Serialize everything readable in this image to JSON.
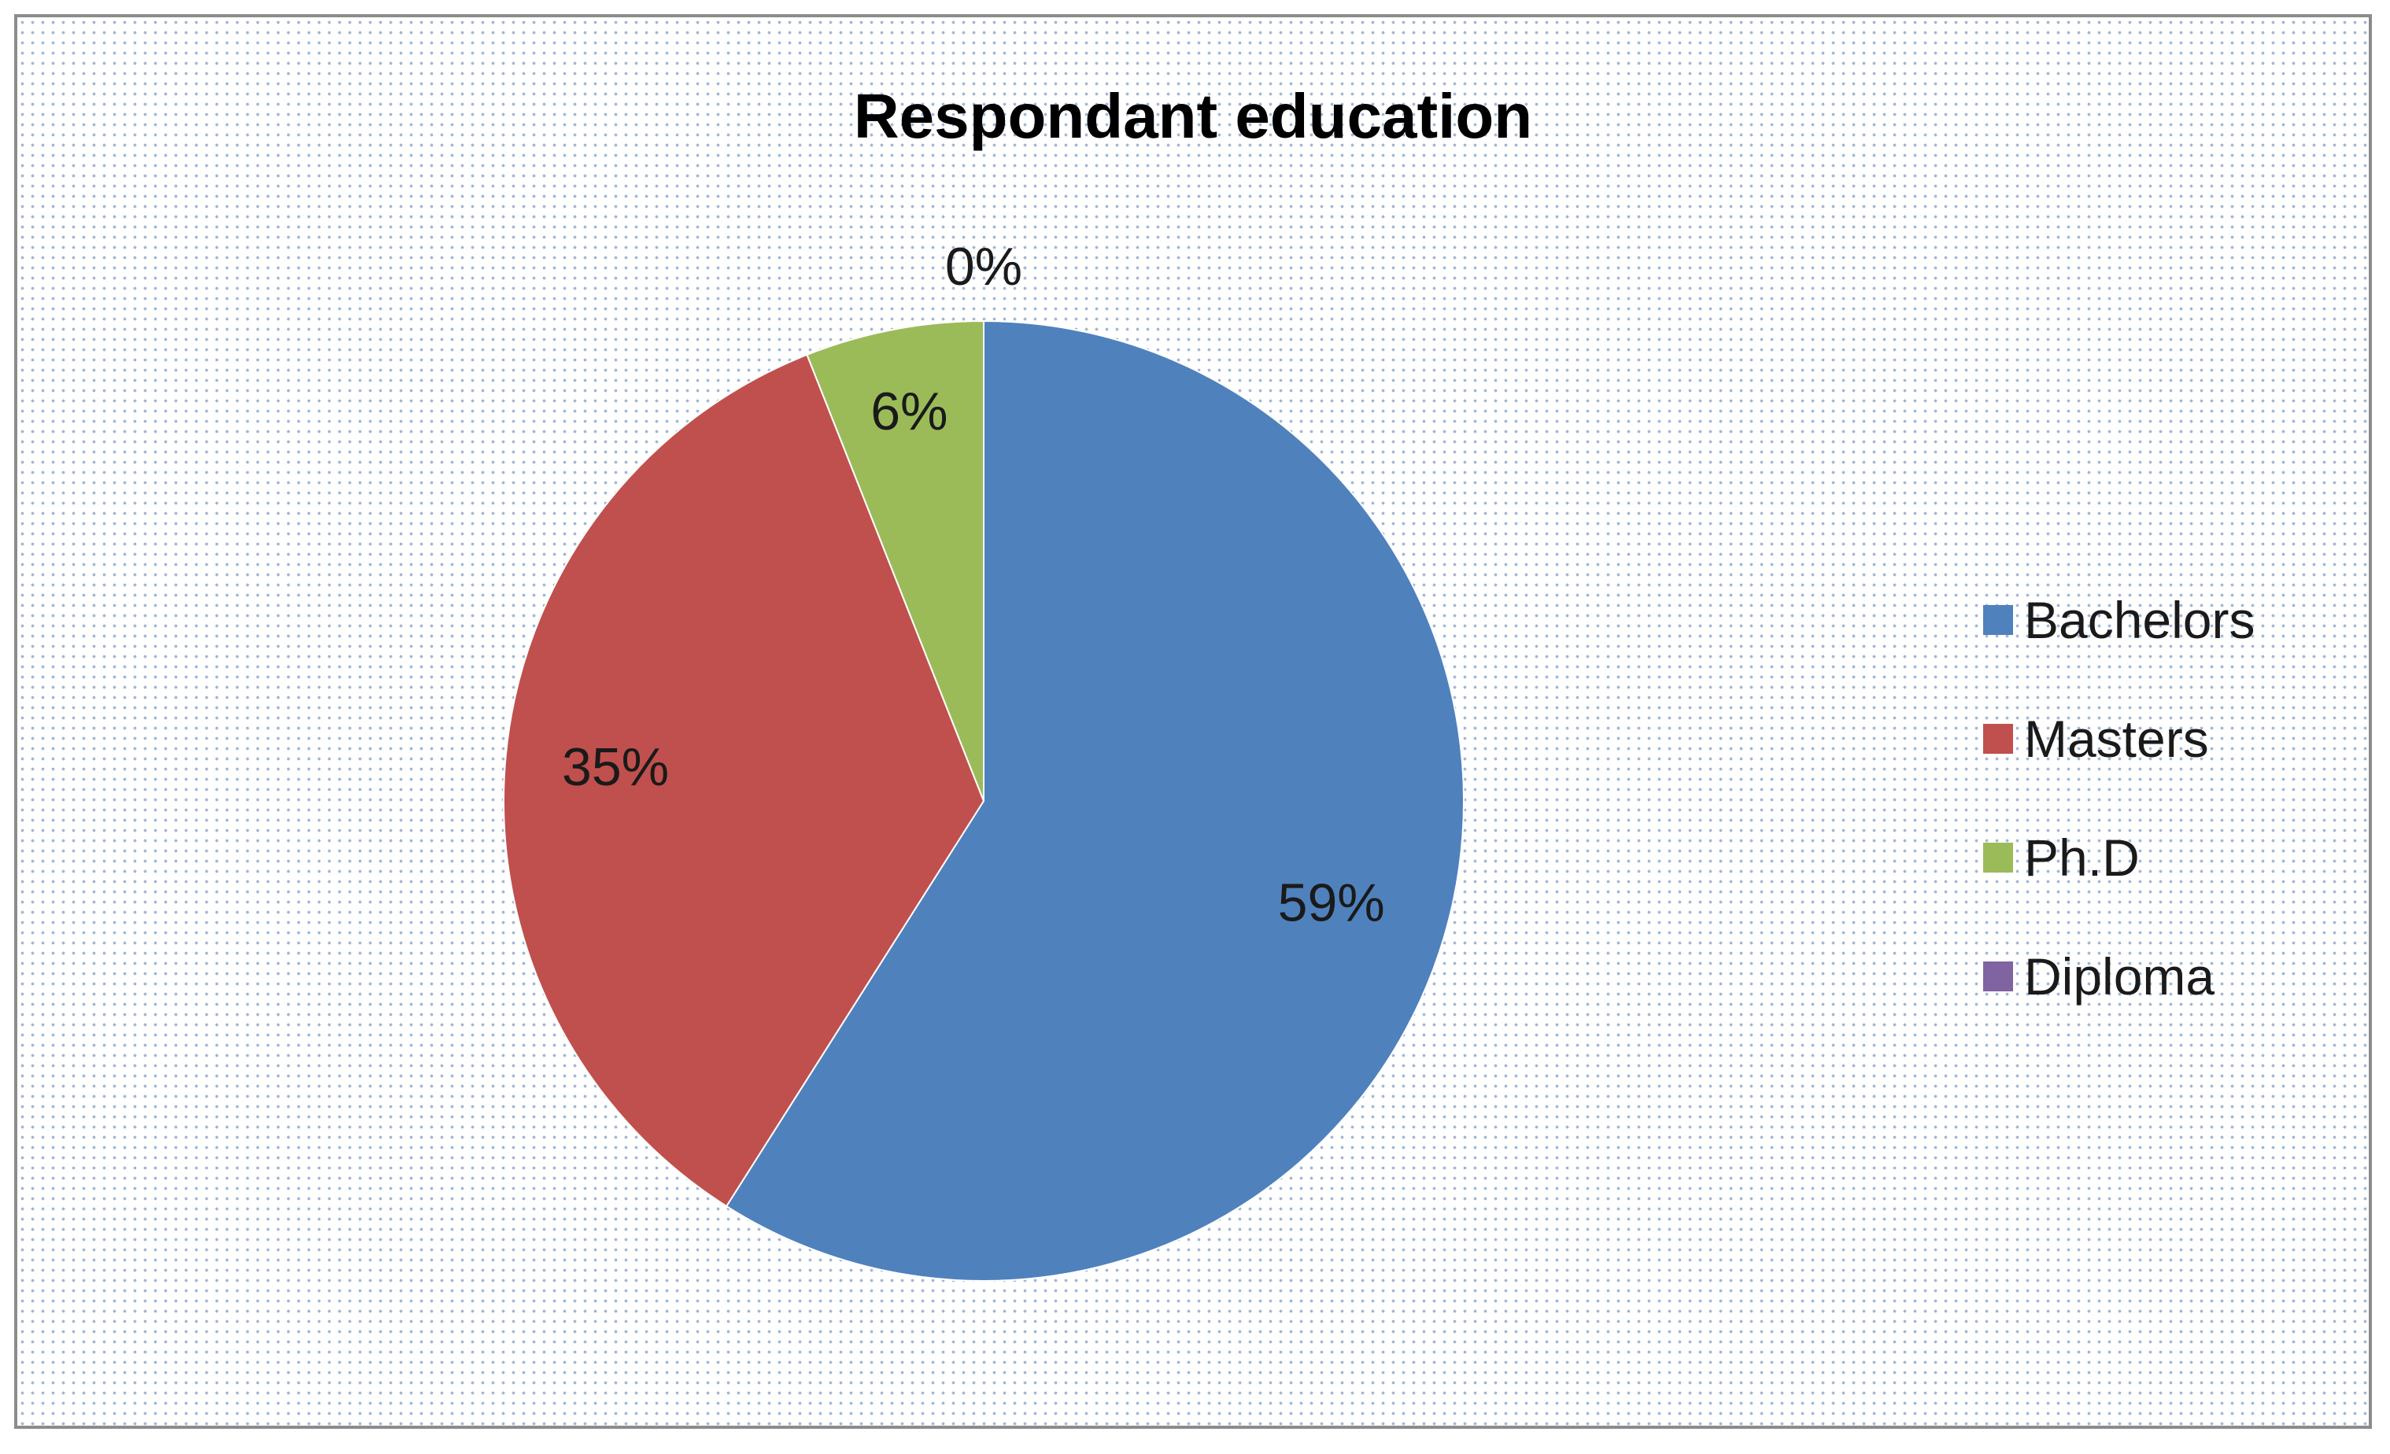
{
  "chart_data": {
    "type": "pie",
    "title": "Respondant education",
    "categories": [
      "Bachelors",
      "Masters",
      "Ph.D",
      "Diploma"
    ],
    "values": [
      59,
      35,
      6,
      0
    ],
    "data_labels": [
      "59%",
      "35%",
      "6%",
      "0%"
    ],
    "colors": [
      "#4f81bd",
      "#c0504d",
      "#9bbb59",
      "#8064a2"
    ],
    "start_angle_deg": 0,
    "direction": "clockwise",
    "legend": {
      "position": "right",
      "entries": [
        "Bachelors",
        "Masters",
        "Ph.D",
        "Diploma"
      ]
    }
  }
}
